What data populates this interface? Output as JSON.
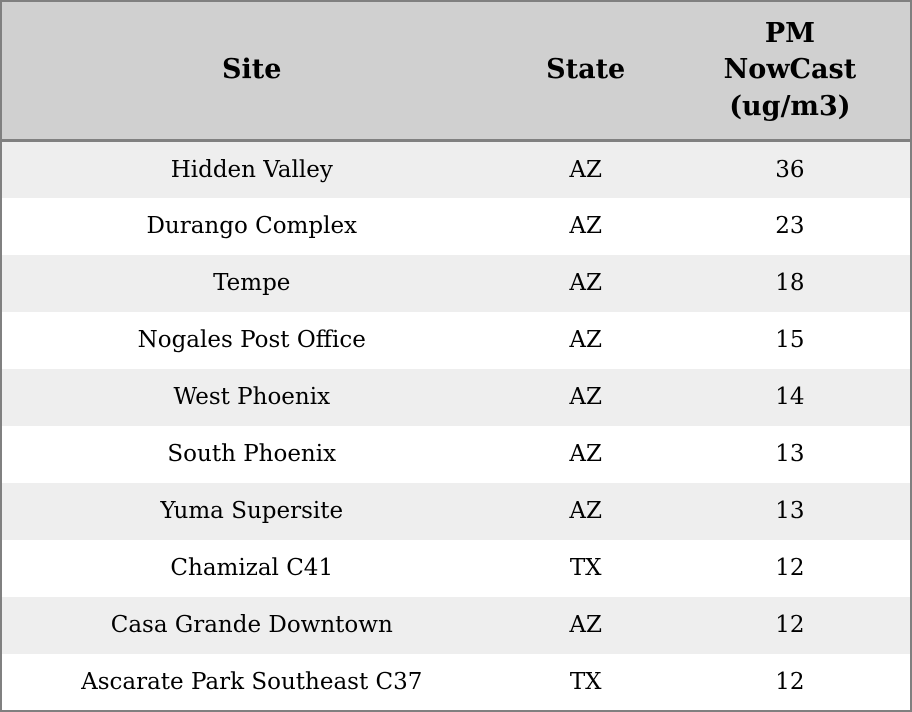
{
  "table": {
    "headers": {
      "site": "Site",
      "state": "State",
      "pm": "PM\nNowCast\n(ug/m3)"
    },
    "rows": [
      {
        "site": "Hidden Valley",
        "state": "AZ",
        "pm": "36"
      },
      {
        "site": "Durango Complex",
        "state": "AZ",
        "pm": "23"
      },
      {
        "site": "Tempe",
        "state": "AZ",
        "pm": "18"
      },
      {
        "site": "Nogales Post Office",
        "state": "AZ",
        "pm": "15"
      },
      {
        "site": "West Phoenix",
        "state": "AZ",
        "pm": "14"
      },
      {
        "site": "South Phoenix",
        "state": "AZ",
        "pm": "13"
      },
      {
        "site": "Yuma Supersite",
        "state": "AZ",
        "pm": "13"
      },
      {
        "site": "Chamizal C41",
        "state": "TX",
        "pm": "12"
      },
      {
        "site": "Casa Grande Downtown",
        "state": "AZ",
        "pm": "12"
      },
      {
        "site": "Ascarate Park Southeast C37",
        "state": "TX",
        "pm": "12"
      }
    ],
    "colors": {
      "header_bg": "#d0d0d0",
      "row_alt_bg": "#eeeeee",
      "row_bg": "#ffffff",
      "border": "#808080",
      "text": "#000000"
    }
  },
  "chart_data": {
    "type": "table",
    "title": "",
    "columns": [
      "Site",
      "State",
      "PM NowCast (ug/m3)"
    ],
    "rows": [
      [
        "Hidden Valley",
        "AZ",
        36
      ],
      [
        "Durango Complex",
        "AZ",
        23
      ],
      [
        "Tempe",
        "AZ",
        18
      ],
      [
        "Nogales Post Office",
        "AZ",
        15
      ],
      [
        "West Phoenix",
        "AZ",
        14
      ],
      [
        "South Phoenix",
        "AZ",
        13
      ],
      [
        "Yuma Supersite",
        "AZ",
        13
      ],
      [
        "Chamizal C41",
        "TX",
        12
      ],
      [
        "Casa Grande Downtown",
        "AZ",
        12
      ],
      [
        "Ascarate Park Southeast C37",
        "TX",
        12
      ]
    ]
  }
}
